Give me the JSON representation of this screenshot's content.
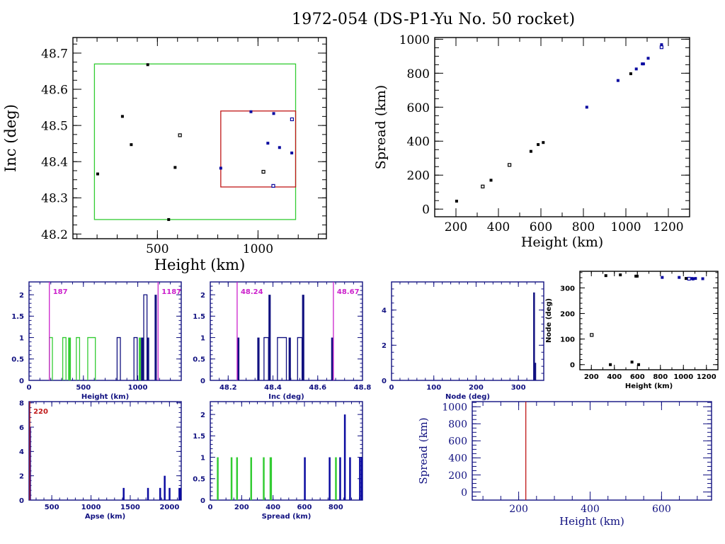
{
  "title": "1972-054 (DS-P1-Yu No. 50 rocket)",
  "colors": {
    "black": "#000000",
    "blue": "#0a0aa0",
    "navy": "#101080",
    "green": "#33cc33",
    "red": "#c01818",
    "magenta": "#cc22cc"
  },
  "chart_data": [
    {
      "id": "inc-vs-height",
      "type": "scatter",
      "title": "",
      "xlabel": "Height (km)",
      "ylabel": "Inc (deg)",
      "xlim": [
        80,
        1340
      ],
      "ylim": [
        48.187,
        48.743
      ],
      "xticks": [
        500,
        1000
      ],
      "yticks": [
        48.2,
        48.3,
        48.4,
        48.5,
        48.6,
        48.7
      ],
      "ytick_labels": [
        "48.2",
        "48.3",
        "48.4",
        "48.5",
        "48.6",
        "48.7"
      ],
      "xtick_labels": [
        "500",
        "1000"
      ],
      "boxes": [
        {
          "name": "green-box",
          "color": "green",
          "x": [
            187,
            1187
          ],
          "y": [
            48.24,
            48.67
          ]
        },
        {
          "name": "red-box",
          "color": "red",
          "x": [
            815,
            1187
          ],
          "y": [
            48.33,
            48.54
          ]
        }
      ],
      "points": [
        {
          "x": 203,
          "y": 48.366,
          "c": "black"
        },
        {
          "x": 326,
          "y": 48.525,
          "c": "black"
        },
        {
          "x": 370,
          "y": 48.447,
          "c": "black"
        },
        {
          "x": 452,
          "y": 48.668,
          "c": "black"
        },
        {
          "x": 556,
          "y": 48.24,
          "c": "black"
        },
        {
          "x": 588,
          "y": 48.384,
          "c": "black"
        },
        {
          "x": 612,
          "y": 48.473,
          "c": "black",
          "open": true
        },
        {
          "x": 815,
          "y": 48.382,
          "c": "blue"
        },
        {
          "x": 965,
          "y": 48.538,
          "c": "blue"
        },
        {
          "x": 1027,
          "y": 48.372,
          "c": "black",
          "open": true
        },
        {
          "x": 1049,
          "y": 48.451,
          "c": "blue"
        },
        {
          "x": 1078,
          "y": 48.533,
          "c": "blue"
        },
        {
          "x": 1076,
          "y": 48.333,
          "c": "blue",
          "open": true
        },
        {
          "x": 1107,
          "y": 48.439,
          "c": "blue"
        },
        {
          "x": 1169,
          "y": 48.517,
          "c": "blue",
          "open": true
        },
        {
          "x": 1168,
          "y": 48.424,
          "c": "blue"
        }
      ]
    },
    {
      "id": "spread-vs-height",
      "type": "scatter",
      "xlabel": "Height (km)",
      "ylabel": "Spread (km)",
      "xlim": [
        100,
        1300
      ],
      "ylim": [
        -45,
        1010
      ],
      "xticks": [
        200,
        400,
        600,
        800,
        1000,
        1200
      ],
      "xtick_labels": [
        "200",
        "400",
        "600",
        "800",
        "1000",
        "1200"
      ],
      "yticks": [
        0,
        200,
        400,
        600,
        800,
        1000
      ],
      "ytick_labels": [
        "0",
        "200",
        "400",
        "600",
        "800",
        "1000"
      ],
      "points": [
        {
          "x": 203,
          "y": 47,
          "c": "black"
        },
        {
          "x": 326,
          "y": 133,
          "c": "black",
          "open": true
        },
        {
          "x": 365,
          "y": 170,
          "c": "black"
        },
        {
          "x": 452,
          "y": 260,
          "c": "black",
          "open": true
        },
        {
          "x": 553,
          "y": 340,
          "c": "black"
        },
        {
          "x": 587,
          "y": 380,
          "c": "black"
        },
        {
          "x": 611,
          "y": 392,
          "c": "black"
        },
        {
          "x": 816,
          "y": 600,
          "c": "blue"
        },
        {
          "x": 963,
          "y": 757,
          "c": "blue"
        },
        {
          "x": 1023,
          "y": 797,
          "c": "black"
        },
        {
          "x": 1049,
          "y": 825,
          "c": "blue"
        },
        {
          "x": 1077,
          "y": 855,
          "c": "blue"
        },
        {
          "x": 1083,
          "y": 855,
          "c": "blue"
        },
        {
          "x": 1105,
          "y": 888,
          "c": "blue"
        },
        {
          "x": 1168,
          "y": 968,
          "c": "blue"
        },
        {
          "x": 1168,
          "y": 953,
          "c": "blue",
          "open": true
        }
      ]
    },
    {
      "id": "height-histogram",
      "type": "bar",
      "xlabel": "Height (km)",
      "ylabel": "",
      "xlim": [
        0,
        1400
      ],
      "ylim": [
        0,
        2.3
      ],
      "xticks": [
        0,
        500,
        1000
      ],
      "xtick_labels": [
        "0",
        "500",
        "1000"
      ],
      "yticks": [
        0,
        0.5,
        1,
        1.5,
        2
      ],
      "ytick_labels": [
        "0",
        "0.5",
        "1",
        "1.5",
        "2"
      ],
      "vlines": [
        {
          "x": 187,
          "label": "187",
          "color": "magenta"
        },
        {
          "x": 1187,
          "label": "1187",
          "color": "magenta"
        }
      ],
      "series": [
        {
          "name": "green",
          "color": "green",
          "bins": [
            [
              187,
              215,
              1
            ],
            [
              310,
              340,
              1
            ],
            [
              360,
              385,
              1
            ],
            [
              435,
              465,
              1
            ],
            [
              540,
              610,
              1
            ],
            [
              1010,
              1030,
              1
            ]
          ]
        },
        {
          "name": "blue",
          "color": "navy",
          "bins": [
            [
              810,
              840,
              1
            ],
            [
              965,
              995,
              1
            ],
            [
              1030,
              1055,
              1
            ],
            [
              1055,
              1085,
              2
            ],
            [
              1085,
              1105,
              1
            ],
            [
              1155,
              1175,
              2
            ]
          ]
        }
      ]
    },
    {
      "id": "inc-histogram",
      "type": "bar",
      "xlabel": "Inc (deg)",
      "ylabel": "",
      "xlim": [
        48.12,
        48.8
      ],
      "ylim": [
        0,
        2.3
      ],
      "xticks": [
        48.2,
        48.4,
        48.6,
        48.8
      ],
      "xtick_labels": [
        "48.2",
        "48.4",
        "48.6",
        "48.8"
      ],
      "yticks": [
        0,
        0.5,
        1,
        1.5,
        2
      ],
      "ytick_labels": [
        "0",
        "0.5",
        "1",
        "1.5",
        "2"
      ],
      "vlines": [
        {
          "x": 48.24,
          "label": "48.24",
          "color": "magenta"
        },
        {
          "x": 48.67,
          "label": "48.67",
          "color": "magenta"
        }
      ],
      "series": [
        {
          "name": "inc",
          "color": "navy",
          "bins": [
            [
              48.24,
              48.25,
              1
            ],
            [
              48.33,
              48.34,
              1
            ],
            [
              48.36,
              48.38,
              1
            ],
            [
              48.38,
              48.39,
              2
            ],
            [
              48.42,
              48.46,
              1
            ],
            [
              48.47,
              48.48,
              1
            ],
            [
              48.51,
              48.53,
              1
            ],
            [
              48.53,
              48.54,
              2
            ],
            [
              48.66,
              48.67,
              1
            ]
          ]
        }
      ]
    },
    {
      "id": "node-histogram",
      "type": "bar",
      "xlabel": "Node (deg)",
      "ylabel": "",
      "xlim": [
        0,
        360
      ],
      "ylim": [
        0,
        5.6
      ],
      "xticks": [
        0,
        100,
        200,
        300
      ],
      "xtick_labels": [
        "0",
        "100",
        "200",
        "300"
      ],
      "yticks": [
        0,
        2,
        4
      ],
      "ytick_labels": [
        "0",
        "2",
        "4"
      ],
      "series": [
        {
          "name": "node",
          "color": "navy",
          "bins": [
            [
              335,
              337,
              5
            ],
            [
              337,
              342,
              1
            ]
          ]
        }
      ]
    },
    {
      "id": "node-vs-height",
      "type": "scatter",
      "xlabel": "Height (km)",
      "ylabel": "Node (deg)",
      "xlim": [
        100,
        1300
      ],
      "ylim": [
        -20,
        365
      ],
      "xticks": [
        200,
        400,
        600,
        800,
        1000,
        1200
      ],
      "xtick_labels": [
        "200",
        "400",
        "600",
        "800",
        "1000",
        "1200"
      ],
      "yticks": [
        0,
        100,
        200,
        300
      ],
      "ytick_labels": [
        "0",
        "100",
        "200",
        "300"
      ],
      "points": [
        {
          "x": 203,
          "y": 116,
          "c": "black",
          "open": true
        },
        {
          "x": 326,
          "y": 348,
          "c": "black"
        },
        {
          "x": 365,
          "y": 0,
          "c": "black"
        },
        {
          "x": 452,
          "y": 351,
          "c": "black"
        },
        {
          "x": 553,
          "y": 10,
          "c": "black"
        },
        {
          "x": 587,
          "y": 346,
          "c": "black"
        },
        {
          "x": 598,
          "y": 346,
          "c": "black"
        },
        {
          "x": 611,
          "y": 0,
          "c": "black"
        },
        {
          "x": 816,
          "y": 341,
          "c": "blue"
        },
        {
          "x": 963,
          "y": 341,
          "c": "blue"
        },
        {
          "x": 1023,
          "y": 337,
          "c": "black"
        },
        {
          "x": 1049,
          "y": 336,
          "c": "blue",
          "open": true
        },
        {
          "x": 1077,
          "y": 337,
          "c": "blue"
        },
        {
          "x": 1083,
          "y": 335,
          "c": "blue"
        },
        {
          "x": 1105,
          "y": 337,
          "c": "blue"
        },
        {
          "x": 1168,
          "y": 336,
          "c": "blue"
        }
      ]
    },
    {
      "id": "apse-histogram",
      "type": "bar",
      "xlabel": "Apse (km)",
      "ylabel": "",
      "xlim": [
        210,
        2150
      ],
      "ylim": [
        0,
        8.1
      ],
      "xticks": [
        500,
        1000,
        1500,
        2000
      ],
      "xtick_labels": [
        "500",
        "1000",
        "1500",
        "2000"
      ],
      "yticks": [
        0,
        2,
        4,
        6,
        8
      ],
      "ytick_labels": [
        "0",
        "2",
        "4",
        "6",
        "8"
      ],
      "vlines": [
        {
          "x": 220,
          "label": "220",
          "color": "red"
        }
      ],
      "series": [
        {
          "name": "apse",
          "color": "blue",
          "bins": [
            [
              212,
              222,
              6
            ],
            [
              1405,
              1418,
              1
            ],
            [
              1715,
              1728,
              1
            ],
            [
              1870,
              1883,
              1
            ],
            [
              1928,
              1941,
              2
            ],
            [
              1990,
              2003,
              1
            ],
            [
              2115,
              2150,
              1
            ]
          ]
        }
      ]
    },
    {
      "id": "spread-histogram",
      "type": "bar",
      "xlabel": "Spread (km)",
      "ylabel": "",
      "xlim": [
        0,
        970
      ],
      "ylim": [
        0,
        2.3
      ],
      "xticks": [
        0,
        200,
        400,
        600,
        800
      ],
      "xtick_labels": [
        "0",
        "200",
        "400",
        "600",
        "800"
      ],
      "yticks": [
        0,
        0.5,
        1,
        1.5,
        2
      ],
      "ytick_labels": [
        "0",
        "0.5",
        "1",
        "1.5",
        "2"
      ],
      "series": [
        {
          "name": "green",
          "color": "green",
          "bins": [
            [
              42,
              50,
              1
            ],
            [
              130,
              138,
              1
            ],
            [
              165,
              173,
              1
            ],
            [
              255,
              263,
              1
            ],
            [
              335,
              343,
              1
            ],
            [
              378,
              393,
              1
            ],
            [
              795,
              803,
              1
            ]
          ]
        },
        {
          "name": "blue",
          "color": "blue",
          "bins": [
            [
              597,
              605,
              1
            ],
            [
              755,
              763,
              1
            ],
            [
              822,
              830,
              1
            ],
            [
              852,
              860,
              2
            ],
            [
              885,
              893,
              1
            ],
            [
              948,
              958,
              1
            ],
            [
              960,
              970,
              1
            ]
          ]
        }
      ]
    },
    {
      "id": "spread-vs-height-low",
      "type": "scatter",
      "xlabel": "Height (km)",
      "ylabel": "Spread (km)",
      "xlim": [
        70,
        740
      ],
      "ylim": [
        -95,
        1060
      ],
      "xticks": [
        200,
        400,
        600
      ],
      "xtick_labels": [
        "200",
        "400",
        "600"
      ],
      "yticks": [
        0,
        200,
        400,
        600,
        800,
        1000
      ],
      "ytick_labels": [
        "0",
        "200",
        "400",
        "600",
        "800",
        "1000"
      ],
      "vlines": [
        {
          "x": 220,
          "label": "",
          "color": "red"
        }
      ],
      "points": []
    }
  ]
}
